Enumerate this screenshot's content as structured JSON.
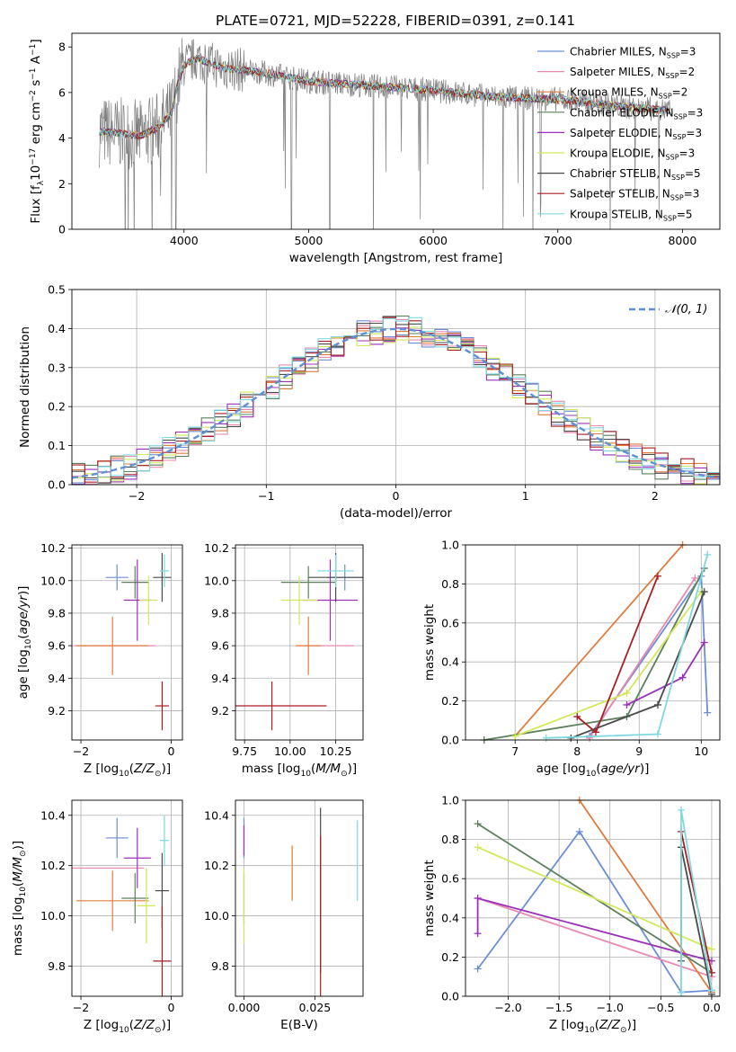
{
  "figure_title": "PLATE=0721, MJD=52228, FIBERID=0391, z=0.141",
  "colors": {
    "Chabrier MILES": "#6a8fd6",
    "Salpeter MILES": "#e888b0",
    "Kroupa MILES": "#e07b3c",
    "Chabrier ELODIE": "#5e7f5e",
    "Salpeter ELODIE": "#9b30b8",
    "Kroupa ELODIE": "#d2e85a",
    "Chabrier STELIB": "#4a4a4a",
    "Salpeter STELIB": "#a81e22",
    "Kroupa STELIB": "#7fd8e0",
    "data": "#7f7f7f",
    "normal": "#5f8fd6"
  },
  "chart_data": [
    {
      "id": "spectrum",
      "type": "line",
      "title": "PLATE=0721, MJD=52228, FIBERID=0391, z=0.141",
      "xlabel": "wavelength [Angstrom, rest frame]",
      "ylabel": "Flux [f_λ10^-17 erg cm^-2 s^-1 A^-1]",
      "xlim": [
        3100,
        8300
      ],
      "ylim": [
        0,
        8.6
      ],
      "xticks": [
        4000,
        5000,
        6000,
        7000,
        8000
      ],
      "yticks": [
        0,
        2,
        4,
        6,
        8
      ],
      "grid": false,
      "legend_position": "top-right",
      "legend": [
        {
          "name": "Chabrier MILES",
          "nssp": "3"
        },
        {
          "name": "Salpeter MILES",
          "nssp": "2"
        },
        {
          "name": "Kroupa MILES",
          "nssp": "2"
        },
        {
          "name": "Chabrier ELODIE",
          "nssp": "3"
        },
        {
          "name": "Salpeter ELODIE",
          "nssp": "3"
        },
        {
          "name": "Kroupa ELODIE",
          "nssp": "3"
        },
        {
          "name": "Chabrier STELIB",
          "nssp": "5"
        },
        {
          "name": "Salpeter STELIB",
          "nssp": "3"
        },
        {
          "name": "Kroupa STELIB",
          "nssp": "5"
        }
      ],
      "model_continuum": {
        "x": [
          3320,
          3500,
          3650,
          3800,
          3900,
          3950,
          4000,
          4100,
          4300,
          4600,
          5000,
          5500,
          6000,
          6500,
          7000,
          7500,
          7900
        ],
        "y": [
          4.3,
          4.2,
          4.1,
          4.5,
          5.1,
          6.4,
          7.2,
          7.5,
          7.1,
          6.9,
          6.5,
          6.3,
          6.1,
          5.8,
          5.7,
          5.4,
          5.2
        ]
      }
    },
    {
      "id": "residual_hist",
      "type": "bar",
      "xlabel": "(data-model)/error",
      "ylabel": "Normed distribution",
      "xlim": [
        -2.5,
        2.5
      ],
      "ylim": [
        0,
        0.5
      ],
      "xticks": [
        -2,
        -1,
        0,
        1,
        2
      ],
      "yticks": [
        0.0,
        0.1,
        0.2,
        0.3,
        0.4,
        0.5
      ],
      "grid": true,
      "legend_position": "top-right",
      "legend": [
        "𝒩(0, 1)"
      ],
      "bin_width": 0.1
    },
    {
      "id": "age_vs_Z",
      "type": "scatter",
      "xlabel": "Z [log10(Z/Z☉)]",
      "ylabel": "age [log10(age/yr)]",
      "xlim": [
        -2.2,
        0.25
      ],
      "ylim": [
        9.02,
        10.22
      ],
      "xticks": [
        -2,
        0
      ],
      "yticks": [
        9.2,
        9.4,
        9.6,
        9.8,
        10.0,
        10.2
      ],
      "grid": true,
      "points": [
        {
          "series": "Chabrier MILES",
          "x": -1.2,
          "xerr": 0.25,
          "y": 10.02,
          "yerr": 0.08
        },
        {
          "series": "Salpeter MILES",
          "x": -1.25,
          "xerr": 0.9,
          "y": 9.6,
          "yerr": 0.0
        },
        {
          "series": "Kroupa MILES",
          "x": -1.3,
          "xerr": 0.8,
          "y": 9.6,
          "yerr": 0.18
        },
        {
          "series": "Chabrier ELODIE",
          "x": -0.8,
          "xerr": 0.3,
          "y": 9.99,
          "yerr": 0.1
        },
        {
          "series": "Salpeter ELODIE",
          "x": -0.75,
          "xerr": 0.3,
          "y": 9.88,
          "yerr": 0.25
        },
        {
          "series": "Kroupa ELODIE",
          "x": -0.5,
          "xerr": 0.2,
          "y": 9.88,
          "yerr": 0.15
        },
        {
          "series": "Chabrier STELIB",
          "x": -0.2,
          "xerr": 0.2,
          "y": 10.02,
          "yerr": 0.15
        },
        {
          "series": "Salpeter STELIB",
          "x": -0.2,
          "xerr": 0.15,
          "y": 9.23,
          "yerr": 0.15
        },
        {
          "series": "Kroupa STELIB",
          "x": -0.15,
          "xerr": 0.1,
          "y": 10.06,
          "yerr": 0.1
        }
      ]
    },
    {
      "id": "age_vs_mass",
      "type": "scatter",
      "xlabel": "mass [log10(M/M☉)]",
      "ylabel": "",
      "xlim": [
        9.7,
        10.4
      ],
      "ylim": [
        9.02,
        10.22
      ],
      "xticks": [
        9.75,
        10.0,
        10.25
      ],
      "yticks": [
        9.2,
        9.4,
        9.6,
        9.8,
        10.0,
        10.2
      ],
      "grid": true,
      "points": [
        {
          "series": "Chabrier MILES",
          "x": 10.3,
          "xerr": 0.1,
          "y": 10.02,
          "yerr": 0.08
        },
        {
          "series": "Salpeter MILES",
          "x": 10.2,
          "xerr": 0.15,
          "y": 9.6,
          "yerr": 0.0
        },
        {
          "series": "Kroupa MILES",
          "x": 10.1,
          "xerr": 0.07,
          "y": 9.6,
          "yerr": 0.18
        },
        {
          "series": "Chabrier ELODIE",
          "x": 10.1,
          "xerr": 0.15,
          "y": 9.99,
          "yerr": 0.1
        },
        {
          "series": "Salpeter ELODIE",
          "x": 10.22,
          "xerr": 0.15,
          "y": 9.88,
          "yerr": 0.25
        },
        {
          "series": "Kroupa ELODIE",
          "x": 10.05,
          "xerr": 0.1,
          "y": 9.88,
          "yerr": 0.15
        },
        {
          "series": "Chabrier STELIB",
          "x": 10.25,
          "xerr": 0.15,
          "y": 10.02,
          "yerr": 0.15
        },
        {
          "series": "Salpeter STELIB",
          "x": 9.9,
          "xerr": 0.3,
          "y": 9.23,
          "yerr": 0.15
        },
        {
          "series": "Kroupa STELIB",
          "x": 10.25,
          "xerr": 0.1,
          "y": 10.06,
          "yerr": 0.1
        }
      ]
    },
    {
      "id": "massweight_vs_age",
      "type": "line",
      "xlabel": "age [log10(age/yr)]",
      "ylabel": "mass weight",
      "xlim": [
        6.2,
        10.3
      ],
      "ylim": [
        0,
        1.0
      ],
      "xticks": [
        7,
        8,
        9,
        10
      ],
      "yticks": [
        0.0,
        0.2,
        0.4,
        0.6,
        0.8,
        1.0
      ],
      "grid": true,
      "series": [
        {
          "name": "Chabrier MILES",
          "x": [
            8.2,
            10.0,
            10.1
          ],
          "y": [
            0.02,
            0.84,
            0.14
          ]
        },
        {
          "name": "Salpeter MILES",
          "x": [
            8.2,
            9.9
          ],
          "y": [
            0.01,
            0.83
          ]
        },
        {
          "name": "Kroupa MILES",
          "x": [
            7.0,
            9.7
          ],
          "y": [
            0.02,
            1.0
          ]
        },
        {
          "name": "Chabrier ELODIE",
          "x": [
            6.5,
            8.8,
            10.05
          ],
          "y": [
            0.0,
            0.12,
            0.88
          ]
        },
        {
          "name": "Salpeter ELODIE",
          "x": [
            8.8,
            9.7,
            10.05
          ],
          "y": [
            0.18,
            0.32,
            0.5
          ]
        },
        {
          "name": "Kroupa ELODIE",
          "x": [
            7.0,
            8.8,
            10.0
          ],
          "y": [
            0.02,
            0.24,
            0.76
          ]
        },
        {
          "name": "Chabrier STELIB",
          "x": [
            7.9,
            9.3,
            10.05
          ],
          "y": [
            0.01,
            0.18,
            0.76
          ]
        },
        {
          "name": "Salpeter STELIB",
          "x": [
            8.0,
            8.3,
            9.3
          ],
          "y": [
            0.12,
            0.04,
            0.84
          ]
        },
        {
          "name": "Kroupa STELIB",
          "x": [
            7.5,
            9.3,
            10.1
          ],
          "y": [
            0.01,
            0.03,
            0.95
          ]
        }
      ]
    },
    {
      "id": "mass_vs_Z",
      "type": "scatter",
      "xlabel": "Z [log10(Z/Z☉)]",
      "ylabel": "mass [log10(M/M☉)]",
      "xlim": [
        -2.2,
        0.25
      ],
      "ylim": [
        9.68,
        10.46
      ],
      "xticks": [
        -2,
        0
      ],
      "yticks": [
        9.8,
        10.0,
        10.2,
        10.4
      ],
      "grid": true,
      "points": [
        {
          "series": "Chabrier MILES",
          "x": -1.2,
          "xerr": 0.25,
          "y": 10.31,
          "yerr": 0.08
        },
        {
          "series": "Salpeter MILES",
          "x": -1.4,
          "xerr": 0.8,
          "y": 10.19,
          "yerr": 0.0
        },
        {
          "series": "Kroupa MILES",
          "x": -1.3,
          "xerr": 0.8,
          "y": 10.06,
          "yerr": 0.12
        },
        {
          "series": "Chabrier ELODIE",
          "x": -0.8,
          "xerr": 0.3,
          "y": 10.07,
          "yerr": 0.1
        },
        {
          "series": "Salpeter ELODIE",
          "x": -0.75,
          "xerr": 0.3,
          "y": 10.23,
          "yerr": 0.12
        },
        {
          "series": "Kroupa ELODIE",
          "x": -0.55,
          "xerr": 0.2,
          "y": 10.04,
          "yerr": 0.15
        },
        {
          "series": "Chabrier STELIB",
          "x": -0.2,
          "xerr": 0.15,
          "y": 10.1,
          "yerr": 0.15
        },
        {
          "series": "Salpeter STELIB",
          "x": -0.2,
          "xerr": 0.2,
          "y": 9.82,
          "yerr": 0.22
        },
        {
          "series": "Kroupa STELIB",
          "x": -0.15,
          "xerr": 0.1,
          "y": 10.3,
          "yerr": 0.1
        }
      ]
    },
    {
      "id": "mass_vs_ebv",
      "type": "scatter",
      "xlabel": "E(B-V)",
      "ylabel": "",
      "xlim": [
        -0.003,
        0.042
      ],
      "ylim": [
        9.68,
        10.46
      ],
      "xticks": [
        0.0,
        0.025
      ],
      "yticks": [
        9.8,
        10.0,
        10.2,
        10.4
      ],
      "grid": true,
      "points": [
        {
          "series": "Chabrier MILES",
          "x": 0.0,
          "y": 10.31,
          "yerr": 0.08
        },
        {
          "series": "Salpeter MILES",
          "x": 0.0,
          "y": 10.19,
          "yerr": 0.0
        },
        {
          "series": "Kroupa MILES",
          "x": 0.017,
          "y": 10.17,
          "yerr": 0.11
        },
        {
          "series": "Chabrier ELODIE",
          "x": 0.0,
          "y": 10.07,
          "yerr": 0.1
        },
        {
          "series": "Salpeter ELODIE",
          "x": 0.0,
          "y": 10.3,
          "yerr": 0.06
        },
        {
          "series": "Kroupa ELODIE",
          "x": 0.0,
          "y": 10.04,
          "yerr": 0.15
        },
        {
          "series": "Chabrier STELIB",
          "x": 0.027,
          "y": 10.1,
          "yerr": 0.33
        },
        {
          "series": "Salpeter STELIB",
          "x": 0.027,
          "y": 10.0,
          "yerr": 0.32
        },
        {
          "series": "Kroupa STELIB",
          "x": 0.04,
          "y": 10.22,
          "yerr": 0.16
        }
      ]
    },
    {
      "id": "massweight_vs_Z",
      "type": "line",
      "xlabel": "Z [log10(Z/Z☉)]",
      "ylabel": "mass weight",
      "xlim": [
        -2.42,
        0.08
      ],
      "ylim": [
        0,
        1.0
      ],
      "xticks": [
        -2.0,
        -1.5,
        -1.0,
        -0.5,
        0.0
      ],
      "yticks": [
        0.0,
        0.2,
        0.4,
        0.6,
        0.8,
        1.0
      ],
      "grid": true,
      "series": [
        {
          "name": "Chabrier MILES",
          "x": [
            -2.3,
            -1.3,
            -0.3,
            0.0
          ],
          "y": [
            0.14,
            0.84,
            0.02,
            0.03
          ]
        },
        {
          "name": "Salpeter MILES",
          "x": [
            -2.3,
            0.0
          ],
          "y": [
            0.5,
            0.1
          ]
        },
        {
          "name": "Kroupa MILES",
          "x": [
            -1.3,
            0.0
          ],
          "y": [
            1.0,
            0.02
          ]
        },
        {
          "name": "Chabrier ELODIE",
          "x": [
            -2.3,
            0.0
          ],
          "y": [
            0.88,
            0.12
          ]
        },
        {
          "name": "Salpeter ELODIE",
          "x": [
            -2.3,
            -2.3,
            0.0
          ],
          "y": [
            0.32,
            0.5,
            0.18
          ]
        },
        {
          "name": "Kroupa ELODIE",
          "x": [
            -2.3,
            0.0
          ],
          "y": [
            0.76,
            0.24
          ]
        },
        {
          "name": "Chabrier STELIB",
          "x": [
            -0.3,
            -0.3,
            0.0
          ],
          "y": [
            0.18,
            0.76,
            0.01
          ]
        },
        {
          "name": "Salpeter STELIB",
          "x": [
            -0.3,
            0.0
          ],
          "y": [
            0.84,
            0.12
          ]
        },
        {
          "name": "Kroupa STELIB",
          "x": [
            -0.3,
            -0.3,
            0.0
          ],
          "y": [
            0.02,
            0.95,
            0.03
          ]
        }
      ]
    }
  ]
}
